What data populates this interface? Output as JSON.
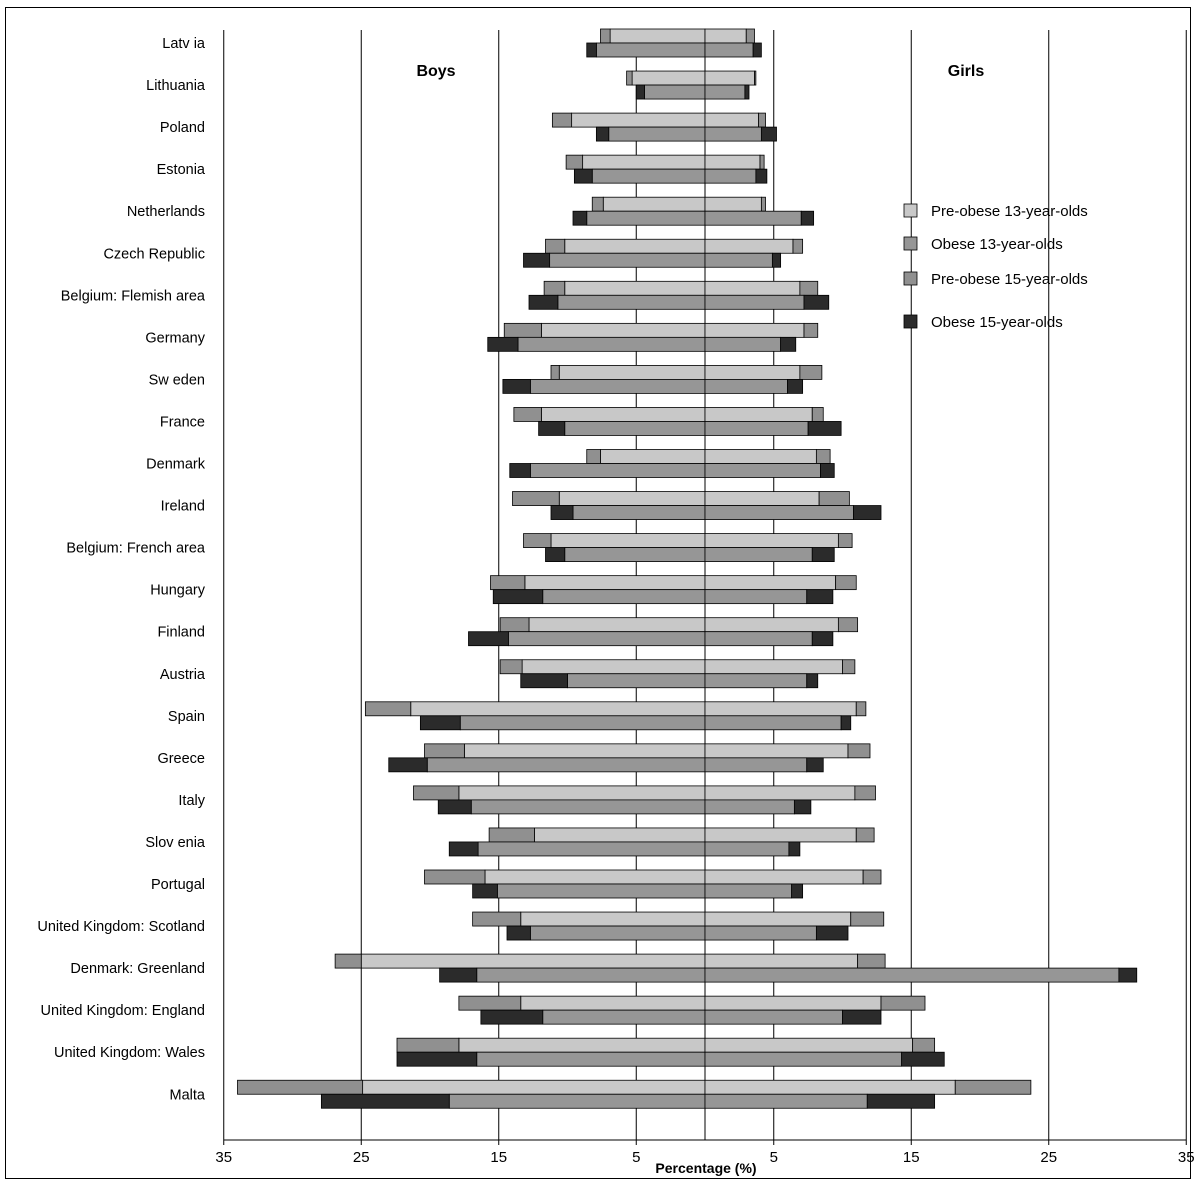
{
  "chart_data": {
    "type": "bar",
    "orientation": "horizontal-diverging",
    "xlabel": "Percentage (%)",
    "panels": {
      "left": "Boys",
      "right": "Girls"
    },
    "axis_ticks": [
      "35",
      "25",
      "15",
      "5",
      "5",
      "15",
      "25",
      "35"
    ],
    "xlim": [
      -35,
      35
    ],
    "grid": true,
    "legend_position": "right",
    "series": [
      {
        "name": "Pre-obese 13-year-olds",
        "color": "#c8c8c8"
      },
      {
        "name": "Obese 13-year-olds",
        "color": "#969696"
      },
      {
        "name": "Pre-obese 15-year-olds",
        "color": "#909090"
      },
      {
        "name": "Obese 15-year-olds",
        "color": "#2b2b2b"
      }
    ],
    "categories": [
      "Latv ia",
      "Lithuania",
      "Poland",
      "Estonia",
      "Netherlands",
      "Czech Republic",
      "Belgium: Flemish area",
      "Germany",
      "Sw eden",
      "France",
      "Denmark",
      "Ireland",
      "Belgium: French area",
      "Hungary",
      "Finland",
      "Austria",
      "Spain",
      "Greece",
      "Italy",
      "Slov enia",
      "Portugal",
      "United Kingdom: Scotland",
      "Denmark: Greenland",
      "United Kingdom: England",
      "United Kingdom: Wales",
      "Malta"
    ],
    "boys_13": [
      [
        6.9,
        0.7
      ],
      [
        5.3,
        0.4
      ],
      [
        9.7,
        1.4
      ],
      [
        8.9,
        1.2
      ],
      [
        7.4,
        0.8
      ],
      [
        10.2,
        1.4
      ],
      [
        10.2,
        1.5
      ],
      [
        11.9,
        2.7
      ],
      [
        10.6,
        0.6
      ],
      [
        11.9,
        2.0
      ],
      [
        7.6,
        1.0
      ],
      [
        10.6,
        3.4
      ],
      [
        11.2,
        2.0
      ],
      [
        13.1,
        2.5
      ],
      [
        12.8,
        2.1
      ],
      [
        13.3,
        1.6
      ],
      [
        21.4,
        3.3
      ],
      [
        17.5,
        2.9
      ],
      [
        17.9,
        3.3
      ],
      [
        12.4,
        3.3
      ],
      [
        16.0,
        4.4
      ],
      [
        13.4,
        3.5
      ],
      [
        25.0,
        1.9
      ],
      [
        13.4,
        4.5
      ],
      [
        17.9,
        4.5
      ],
      [
        24.9,
        9.1
      ]
    ],
    "boys_15": [
      [
        7.9,
        0.7
      ],
      [
        4.4,
        0.6
      ],
      [
        7.0,
        0.9
      ],
      [
        8.2,
        1.3
      ],
      [
        8.6,
        1.0
      ],
      [
        11.3,
        1.9
      ],
      [
        10.7,
        2.1
      ],
      [
        13.6,
        2.2
      ],
      [
        12.7,
        2.0
      ],
      [
        10.2,
        1.9
      ],
      [
        12.7,
        1.5
      ],
      [
        9.6,
        1.6
      ],
      [
        10.2,
        1.4
      ],
      [
        11.8,
        3.6
      ],
      [
        14.3,
        2.9
      ],
      [
        10.0,
        3.4
      ],
      [
        17.8,
        2.9
      ],
      [
        20.2,
        2.8
      ],
      [
        17.0,
        2.4
      ],
      [
        16.5,
        2.1
      ],
      [
        15.1,
        1.8
      ],
      [
        12.7,
        1.7
      ],
      [
        16.6,
        2.7
      ],
      [
        11.8,
        4.5
      ],
      [
        16.6,
        5.8
      ],
      [
        18.6,
        9.3
      ]
    ],
    "girls_13": [
      [
        3.0,
        0.6
      ],
      [
        3.6,
        0.1
      ],
      [
        3.9,
        0.5
      ],
      [
        4.0,
        0.3
      ],
      [
        4.1,
        0.3
      ],
      [
        6.4,
        0.7
      ],
      [
        6.9,
        1.3
      ],
      [
        7.2,
        1.0
      ],
      [
        6.9,
        1.6
      ],
      [
        7.8,
        0.8
      ],
      [
        8.1,
        1.0
      ],
      [
        8.3,
        2.2
      ],
      [
        9.7,
        1.0
      ],
      [
        9.5,
        1.5
      ],
      [
        9.7,
        1.4
      ],
      [
        10.0,
        0.9
      ],
      [
        11.0,
        0.7
      ],
      [
        10.4,
        1.6
      ],
      [
        10.9,
        1.5
      ],
      [
        11.0,
        1.3
      ],
      [
        11.5,
        1.3
      ],
      [
        10.6,
        2.4
      ],
      [
        11.1,
        2.0
      ],
      [
        12.8,
        3.2
      ],
      [
        15.1,
        1.6
      ],
      [
        18.2,
        5.5
      ]
    ],
    "girls_15": [
      [
        3.5,
        0.6
      ],
      [
        2.9,
        0.3
      ],
      [
        4.1,
        1.1
      ],
      [
        3.7,
        0.8
      ],
      [
        7.0,
        0.9
      ],
      [
        4.9,
        0.6
      ],
      [
        7.2,
        1.8
      ],
      [
        5.5,
        1.1
      ],
      [
        6.0,
        1.1
      ],
      [
        7.5,
        2.4
      ],
      [
        8.4,
        1.0
      ],
      [
        10.8,
        2.0
      ],
      [
        7.8,
        1.6
      ],
      [
        7.4,
        1.9
      ],
      [
        7.8,
        1.5
      ],
      [
        7.4,
        0.8
      ],
      [
        9.9,
        0.7
      ],
      [
        7.4,
        1.2
      ],
      [
        6.5,
        1.2
      ],
      [
        6.1,
        0.8
      ],
      [
        6.3,
        0.8
      ],
      [
        8.1,
        2.3
      ],
      [
        30.1,
        1.3
      ],
      [
        10.0,
        2.8
      ],
      [
        14.3,
        3.1
      ],
      [
        11.8,
        4.9
      ]
    ]
  }
}
